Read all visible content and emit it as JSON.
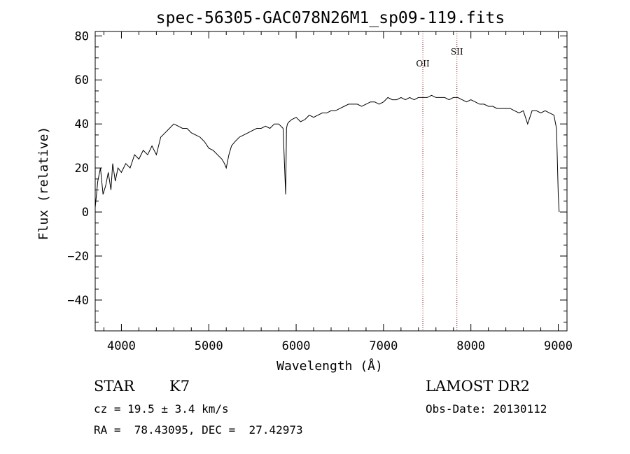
{
  "chart_data": {
    "type": "line",
    "title": "spec-56305-GAC078N26M1_sp09-119.fits",
    "xlabel": "Wavelength (Å)",
    "ylabel": "Flux (relative)",
    "xlim": [
      3700,
      9100
    ],
    "ylim": [
      -54,
      82
    ],
    "xticks": [
      4000,
      5000,
      6000,
      7000,
      8000,
      9000
    ],
    "yticks": [
      -40,
      -20,
      0,
      20,
      40,
      60,
      80
    ],
    "tick_labels": {
      "x": [
        "4000",
        "5000",
        "6000",
        "7000",
        "8000",
        "9000"
      ],
      "y": [
        "−40",
        "−20",
        "0",
        "20",
        "40",
        "60",
        "80"
      ]
    },
    "grid": false,
    "series": [
      {
        "x": [
          3700,
          3730,
          3760,
          3790,
          3820,
          3850,
          3880,
          3900,
          3930,
          3960,
          4000,
          4050,
          4100,
          4150,
          4200,
          4250,
          4300,
          4350,
          4400,
          4450,
          4500,
          4550,
          4600,
          4650,
          4700,
          4750,
          4800,
          4850,
          4900,
          4950,
          5000,
          5050,
          5100,
          5150,
          5180,
          5200,
          5230,
          5260,
          5300,
          5350,
          5400,
          5450,
          5500,
          5550,
          5600,
          5650,
          5700,
          5750,
          5800,
          5850,
          5880,
          5890,
          5900,
          5920,
          5950,
          6000,
          6050,
          6100,
          6150,
          6200,
          6250,
          6300,
          6350,
          6400,
          6450,
          6500,
          6550,
          6600,
          6650,
          6700,
          6750,
          6800,
          6850,
          6900,
          6950,
          7000,
          7050,
          7100,
          7150,
          7200,
          7250,
          7300,
          7350,
          7400,
          7450,
          7500,
          7550,
          7600,
          7650,
          7700,
          7750,
          7800,
          7850,
          7900,
          7950,
          8000,
          8050,
          8100,
          8150,
          8200,
          8250,
          8300,
          8350,
          8400,
          8450,
          8500,
          8550,
          8600,
          8650,
          8700,
          8750,
          8800,
          8850,
          8900,
          8950,
          8980,
          9000,
          9010
        ],
        "y": [
          2,
          14,
          20,
          8,
          12,
          18,
          10,
          22,
          14,
          20,
          18,
          22,
          20,
          26,
          24,
          28,
          26,
          30,
          26,
          34,
          36,
          38,
          40,
          39,
          38,
          38,
          36,
          35,
          34,
          32,
          29,
          28,
          26,
          24,
          22,
          20,
          26,
          30,
          32,
          34,
          35,
          36,
          37,
          38,
          38,
          39,
          38,
          40,
          40,
          38,
          8,
          38,
          40,
          41,
          42,
          43,
          41,
          42,
          44,
          43,
          44,
          45,
          45,
          46,
          46,
          47,
          48,
          49,
          49,
          49,
          48,
          49,
          50,
          50,
          49,
          50,
          52,
          51,
          51,
          52,
          51,
          52,
          51,
          52,
          52,
          52,
          53,
          52,
          52,
          52,
          51,
          52,
          52,
          51,
          50,
          51,
          50,
          49,
          49,
          48,
          48,
          47,
          47,
          47,
          47,
          46,
          45,
          46,
          40,
          46,
          46,
          45,
          46,
          45,
          44,
          38,
          8,
          0
        ]
      }
    ],
    "annotations": [
      {
        "label": "OII",
        "x": 7450
      },
      {
        "label": "SII",
        "x": 7840
      }
    ]
  },
  "info": {
    "star_label": "STAR",
    "subclass": "K7",
    "survey": "LAMOST DR2",
    "cz": "cz = 19.5 ± 3.4 km/s",
    "obs_date": "Obs-Date: 20130112",
    "radec": "RA =  78.43095, DEC =  27.42973"
  }
}
